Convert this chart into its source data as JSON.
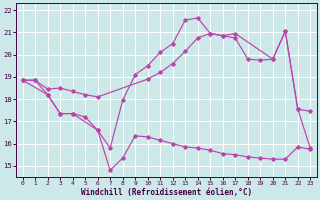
{
  "xlabel": "Windchill (Refroidissement éolien,°C)",
  "background_color": "#cce8e8",
  "grid_color": "#ffffff",
  "line_color": "#bb44aa",
  "xlim_min": -0.5,
  "xlim_max": 23.5,
  "ylim_min": 14.5,
  "ylim_max": 22.3,
  "yticks": [
    15,
    16,
    17,
    18,
    19,
    20,
    21,
    22
  ],
  "xticks": [
    0,
    1,
    2,
    3,
    4,
    5,
    6,
    7,
    8,
    9,
    10,
    11,
    12,
    13,
    14,
    15,
    16,
    17,
    18,
    19,
    20,
    21,
    22,
    23
  ],
  "series": [
    {
      "x": [
        0,
        1,
        2,
        3,
        4,
        5,
        6,
        7,
        8,
        9,
        10,
        11,
        12,
        13,
        14,
        15,
        16,
        17,
        20,
        21,
        22,
        23
      ],
      "y": [
        18.85,
        18.85,
        18.2,
        17.35,
        17.35,
        17.2,
        16.6,
        15.8,
        17.95,
        19.1,
        19.5,
        20.1,
        20.5,
        21.55,
        21.65,
        20.95,
        20.85,
        20.95,
        19.8,
        21.05,
        17.55,
        17.45
      ]
    },
    {
      "x": [
        0,
        2,
        3,
        4,
        6,
        7,
        8,
        9,
        10,
        11,
        12,
        13,
        14,
        15,
        16,
        17,
        18,
        19,
        20,
        21,
        22,
        23
      ],
      "y": [
        18.85,
        18.2,
        17.35,
        17.35,
        16.6,
        14.8,
        15.35,
        16.35,
        16.3,
        16.15,
        16.0,
        15.85,
        15.8,
        15.7,
        15.55,
        15.5,
        15.4,
        15.35,
        15.3,
        15.3,
        15.85,
        15.75
      ]
    },
    {
      "x": [
        0,
        1,
        2,
        3,
        4,
        5,
        6,
        10,
        11,
        12,
        13,
        14,
        15,
        16,
        17,
        18,
        19,
        20,
        21,
        22,
        23
      ],
      "y": [
        18.85,
        18.85,
        18.45,
        18.5,
        18.35,
        18.2,
        18.1,
        18.9,
        19.2,
        19.6,
        20.15,
        20.75,
        20.95,
        20.85,
        20.75,
        19.8,
        19.75,
        19.8,
        21.05,
        17.55,
        15.8
      ]
    }
  ]
}
